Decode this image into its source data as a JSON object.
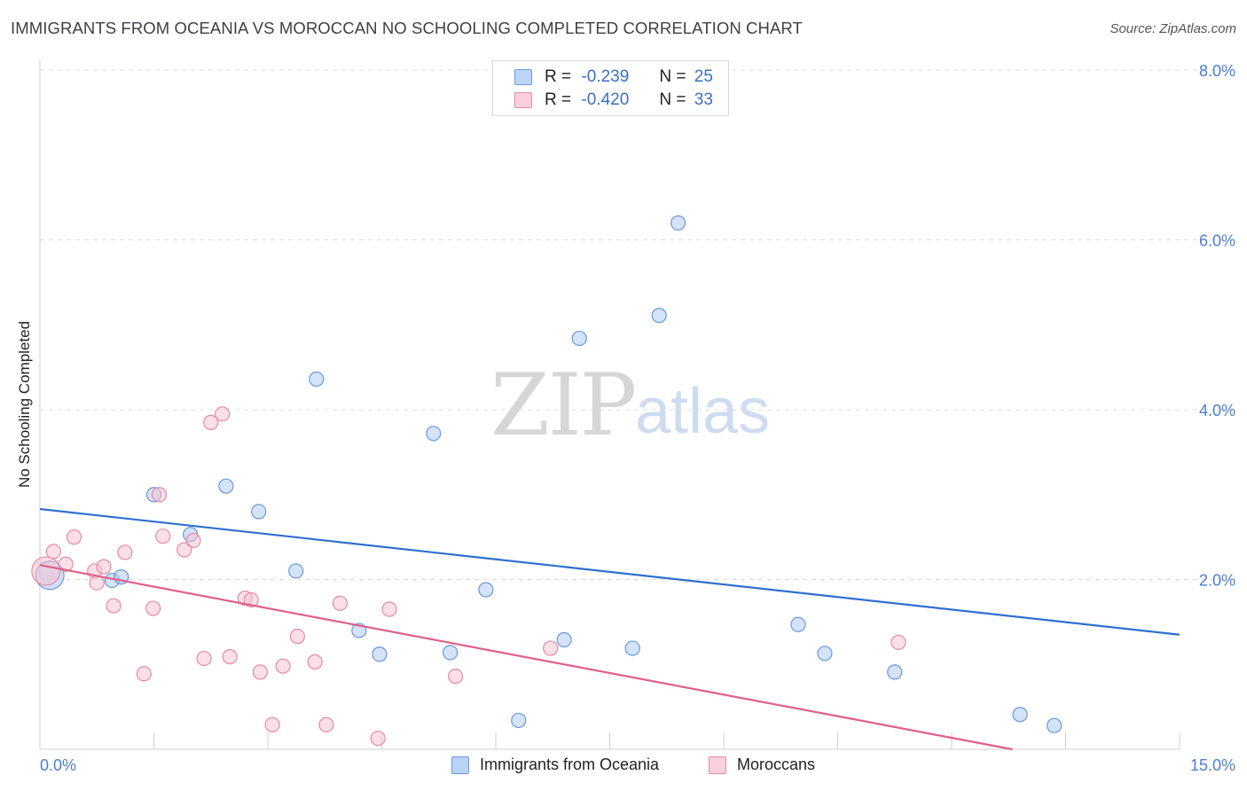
{
  "header": {
    "title": "IMMIGRANTS FROM OCEANIA VS MOROCCAN NO SCHOOLING COMPLETED CORRELATION CHART",
    "source": "Source: ZipAtlas.com"
  },
  "watermark": {
    "zip": "ZIP",
    "atlas": "atlas"
  },
  "legend": {
    "rows": [
      {
        "r_label": "R =",
        "r_value": "-0.239",
        "n_label": "N =",
        "n_value": "25",
        "color": "#a9c8f0",
        "border": "#5b8fd6"
      },
      {
        "r_label": "R =",
        "r_value": "-0.420",
        "n_label": "N =",
        "n_value": "33",
        "color": "#f7c0d0",
        "border": "#e07a9a"
      }
    ]
  },
  "bottom_legend": [
    {
      "label": "Immigrants from Oceania",
      "color": "#b9d3f5",
      "border": "#6b98da"
    },
    {
      "label": "Moroccans",
      "color": "#fad0dc",
      "border": "#e48aa6"
    }
  ],
  "chart_data": {
    "type": "scatter",
    "title": "IMMIGRANTS FROM OCEANIA VS MOROCCAN NO SCHOOLING COMPLETED CORRELATION CHART",
    "xlabel": "",
    "ylabel": "No Schooling Completed",
    "xlim": [
      0,
      15
    ],
    "ylim": [
      0,
      8
    ],
    "x_ticks": [
      "0.0%",
      "15.0%"
    ],
    "y_ticks": [
      {
        "value": 2,
        "label": "2.0%"
      },
      {
        "value": 4,
        "label": "4.0%"
      },
      {
        "value": 6,
        "label": "6.0%"
      },
      {
        "value": 8,
        "label": "8.0%"
      }
    ],
    "grid": true,
    "series": [
      {
        "name": "Immigrants from Oceania",
        "color": "#a9c8f0",
        "stroke": "#6b98da",
        "trend_color": "#2f6fd0",
        "trend": {
          "x": [
            0,
            15
          ],
          "y": [
            2.83,
            1.35
          ]
        },
        "points": [
          {
            "x": 0.13,
            "y": 2.05,
            "big": true
          },
          {
            "x": 0.95,
            "y": 1.99
          },
          {
            "x": 1.07,
            "y": 2.03
          },
          {
            "x": 1.5,
            "y": 3.0
          },
          {
            "x": 1.98,
            "y": 2.53
          },
          {
            "x": 2.45,
            "y": 3.1
          },
          {
            "x": 2.88,
            "y": 2.8
          },
          {
            "x": 3.37,
            "y": 2.1
          },
          {
            "x": 3.64,
            "y": 4.36
          },
          {
            "x": 4.2,
            "y": 1.4
          },
          {
            "x": 4.47,
            "y": 1.12
          },
          {
            "x": 5.18,
            "y": 3.72
          },
          {
            "x": 5.4,
            "y": 1.14
          },
          {
            "x": 5.87,
            "y": 1.88
          },
          {
            "x": 6.3,
            "y": 0.34
          },
          {
            "x": 6.9,
            "y": 1.29
          },
          {
            "x": 7.1,
            "y": 4.84
          },
          {
            "x": 7.8,
            "y": 1.19
          },
          {
            "x": 8.15,
            "y": 5.11
          },
          {
            "x": 8.4,
            "y": 6.2
          },
          {
            "x": 9.98,
            "y": 1.47
          },
          {
            "x": 10.33,
            "y": 1.13
          },
          {
            "x": 11.25,
            "y": 0.91
          },
          {
            "x": 12.9,
            "y": 0.41
          },
          {
            "x": 13.35,
            "y": 0.28
          }
        ]
      },
      {
        "name": "Moroccans",
        "color": "#f7c0d0",
        "stroke": "#e48aa6",
        "trend_color": "#e0608a",
        "trend": {
          "x": [
            0,
            12.8
          ],
          "y": [
            2.17,
            0.0
          ]
        },
        "points": [
          {
            "x": 0.08,
            "y": 2.1,
            "big": true
          },
          {
            "x": 0.18,
            "y": 2.33
          },
          {
            "x": 0.34,
            "y": 2.18
          },
          {
            "x": 0.45,
            "y": 2.5
          },
          {
            "x": 0.72,
            "y": 2.1
          },
          {
            "x": 0.75,
            "y": 1.96
          },
          {
            "x": 0.84,
            "y": 2.15
          },
          {
            "x": 0.97,
            "y": 1.69
          },
          {
            "x": 1.12,
            "y": 2.32
          },
          {
            "x": 1.37,
            "y": 0.89
          },
          {
            "x": 1.49,
            "y": 1.66
          },
          {
            "x": 1.57,
            "y": 3.0
          },
          {
            "x": 1.62,
            "y": 2.51
          },
          {
            "x": 1.9,
            "y": 2.35
          },
          {
            "x": 2.02,
            "y": 2.46
          },
          {
            "x": 2.16,
            "y": 1.07
          },
          {
            "x": 2.25,
            "y": 3.85
          },
          {
            "x": 2.4,
            "y": 3.95
          },
          {
            "x": 2.5,
            "y": 1.09
          },
          {
            "x": 2.7,
            "y": 1.78
          },
          {
            "x": 2.78,
            "y": 1.76
          },
          {
            "x": 2.9,
            "y": 0.91
          },
          {
            "x": 3.06,
            "y": 0.29
          },
          {
            "x": 3.2,
            "y": 0.98
          },
          {
            "x": 3.39,
            "y": 1.33
          },
          {
            "x": 3.62,
            "y": 1.03
          },
          {
            "x": 3.77,
            "y": 0.29
          },
          {
            "x": 3.95,
            "y": 1.72
          },
          {
            "x": 4.45,
            "y": 0.13
          },
          {
            "x": 4.6,
            "y": 1.65
          },
          {
            "x": 5.47,
            "y": 0.86
          },
          {
            "x": 6.72,
            "y": 1.19
          },
          {
            "x": 11.3,
            "y": 1.26
          }
        ]
      }
    ]
  }
}
